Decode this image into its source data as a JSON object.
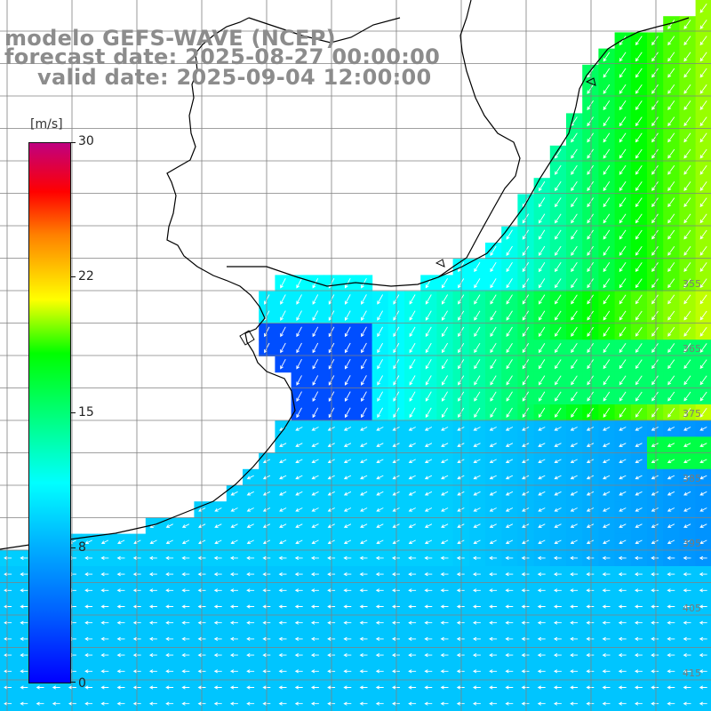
{
  "title": {
    "line1": "modelo GEFS-WAVE (NCEP)",
    "line2": "forecast date: 2025-08-27 00:00:00",
    "line3": "valid date: 2025-09-04 12:00:00"
  },
  "colorbar": {
    "unit": "[m/s]",
    "ticks": [
      "30",
      "22",
      "15",
      "8",
      "0"
    ],
    "tick_values": [
      30,
      22,
      15,
      8,
      0
    ],
    "range": [
      0,
      30
    ]
  },
  "lat_labels": [
    "355",
    "365",
    "375",
    "385",
    "395",
    "405",
    "415"
  ],
  "colors": {
    "land": "#ffffff",
    "coast": "#000000",
    "grid": "#808080",
    "arrow": "#ffffff",
    "title": "#8c8c8c"
  }
}
